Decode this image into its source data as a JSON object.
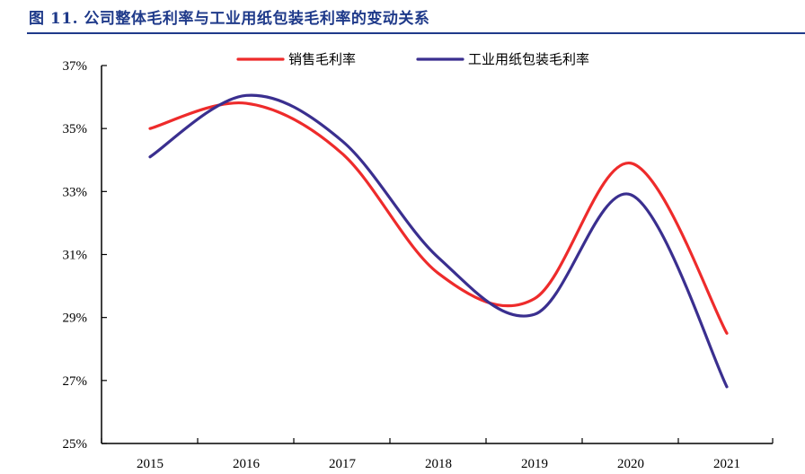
{
  "figure": {
    "title": "图 11. 公司整体毛利率与工业用纸包装毛利率的变动关系"
  },
  "colors": {
    "title": "#1f3a8a",
    "axis": "#000000"
  },
  "chart_data": {
    "type": "line",
    "categories": [
      "2015",
      "2016",
      "2017",
      "2018",
      "2019",
      "2020",
      "2021"
    ],
    "series": [
      {
        "name": "销售毛利率",
        "color": "#ee2b2b",
        "values": [
          35.0,
          35.8,
          34.2,
          30.4,
          29.6,
          33.9,
          28.5
        ]
      },
      {
        "name": "工业用纸包装毛利率",
        "color": "#3a2f8f",
        "values": [
          34.1,
          36.05,
          34.6,
          30.9,
          29.1,
          32.9,
          26.8
        ]
      }
    ],
    "y_ticks": [
      "25%",
      "27%",
      "29%",
      "31%",
      "33%",
      "35%",
      "37%"
    ],
    "ylim": [
      25,
      37
    ],
    "smooth": true,
    "grid": false,
    "legend_position": "top-center"
  }
}
